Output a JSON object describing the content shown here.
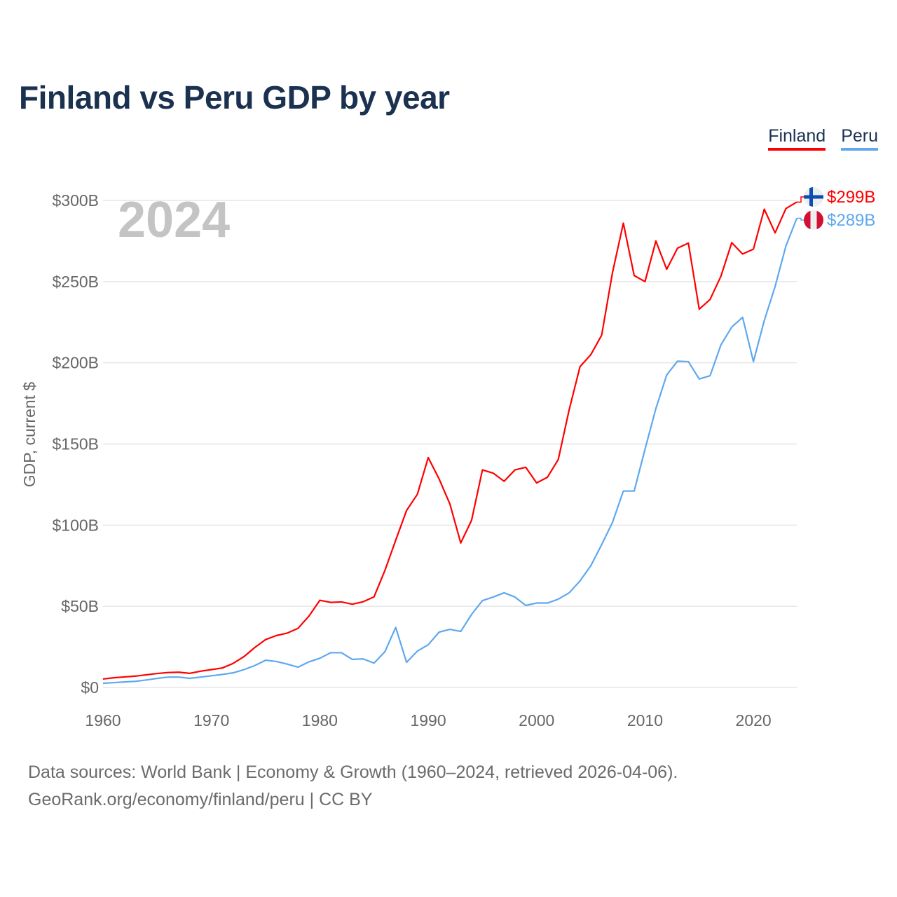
{
  "title": "Finland vs Peru GDP by year",
  "legend": [
    {
      "label": "Finland",
      "color": "#ff0000"
    },
    {
      "label": "Peru",
      "color": "#5ea8ef"
    }
  ],
  "year_watermark": "2024",
  "footer": {
    "line1": "Data sources: World Bank | Economy & Growth (1960–2024, retrieved 2026-04-06).",
    "line2": "GeoRank.org/economy/finland/peru | CC BY"
  },
  "chart_data": {
    "type": "line",
    "title": "Finland vs Peru GDP by year",
    "xlabel": "",
    "ylabel": "GDP, current $",
    "xlim": [
      1960,
      2024
    ],
    "ylim": [
      0,
      300
    ],
    "x_ticks": [
      1960,
      1970,
      1980,
      1990,
      2000,
      2010,
      2020
    ],
    "y_ticks": [
      {
        "v": 0,
        "label": "$0"
      },
      {
        "v": 50,
        "label": "$50B"
      },
      {
        "v": 100,
        "label": "$100B"
      },
      {
        "v": 150,
        "label": "$150B"
      },
      {
        "v": 200,
        "label": "$200B"
      },
      {
        "v": 250,
        "label": "$250B"
      },
      {
        "v": 300,
        "label": "$300B"
      }
    ],
    "grid": true,
    "legend_position": "top-right",
    "x_start": 1960,
    "series": [
      {
        "name": "Finland",
        "color": "#ff0000",
        "end_label": "$299B",
        "flag": "finland",
        "values": [
          5.2,
          6,
          6.5,
          7,
          7.8,
          8.6,
          9.2,
          9.4,
          8.7,
          10,
          11,
          12,
          14.8,
          19,
          24.6,
          29.5,
          32,
          33.5,
          36.5,
          44,
          53.7,
          52.4,
          52.7,
          51.3,
          52.8,
          55.8,
          72,
          90.7,
          109,
          119,
          141.6,
          128.5,
          113,
          89,
          103,
          134,
          132,
          127,
          134,
          135.6,
          126,
          129.5,
          140.5,
          171,
          197.6,
          205,
          217,
          255.6,
          286,
          253.7,
          250,
          275,
          257.6,
          270.6,
          273.7,
          233,
          239,
          253.3,
          274,
          267,
          270,
          294.6,
          280,
          295,
          299
        ]
      },
      {
        "name": "Peru",
        "color": "#5ea8ef",
        "end_label": "$289B",
        "flag": "peru",
        "values": [
          2.6,
          3,
          3.4,
          3.8,
          4.6,
          5.6,
          6.4,
          6.4,
          5.6,
          6.4,
          7.2,
          8,
          9,
          11,
          13.5,
          16.8,
          16,
          14.4,
          12.5,
          15.8,
          18,
          21.4,
          21.4,
          17.3,
          17.6,
          15,
          22,
          37,
          15.5,
          22.4,
          26.3,
          34.1,
          35.8,
          34.5,
          45,
          53.5,
          55.7,
          58.3,
          55.7,
          50.5,
          52,
          52,
          54.4,
          58.3,
          65.6,
          75,
          88,
          101.7,
          121,
          121,
          146.8,
          171.8,
          192.5,
          201,
          200.7,
          190,
          192,
          211,
          222,
          228,
          200.7,
          226,
          247,
          272,
          289
        ]
      }
    ]
  }
}
